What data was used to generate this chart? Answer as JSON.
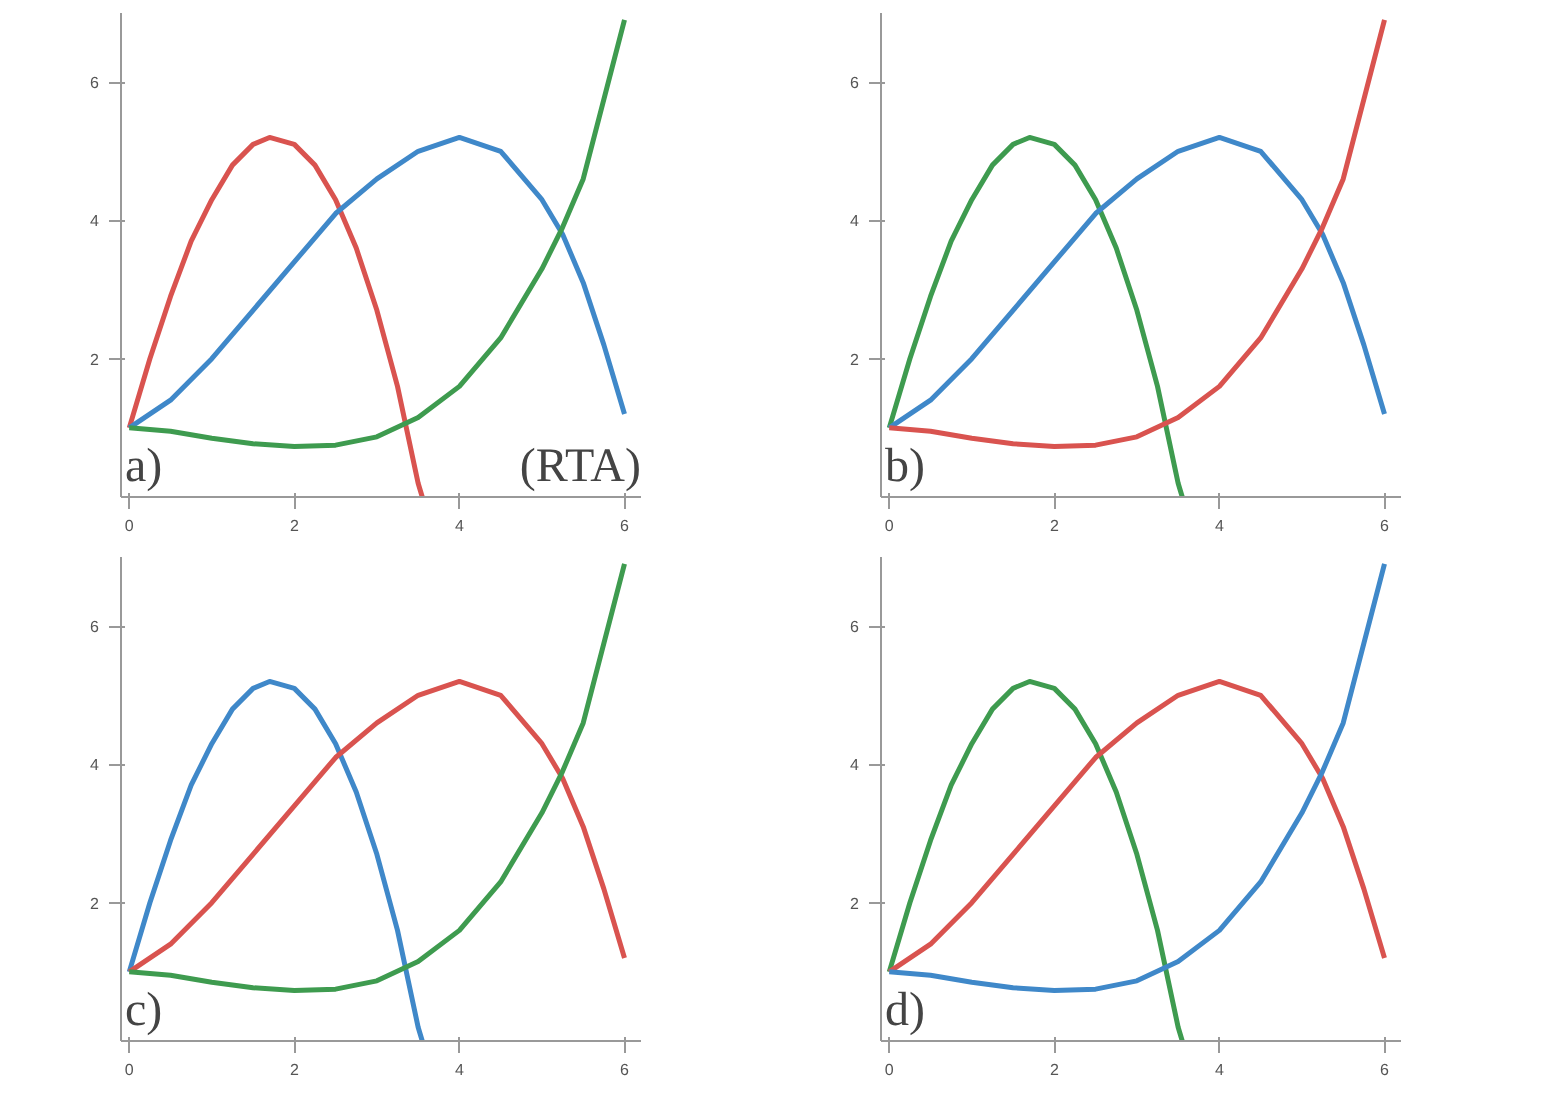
{
  "chart_data": [
    {
      "type": "line",
      "annotations": [
        "a)",
        "(RTA)"
      ],
      "xlim": [
        -0.1,
        6.2
      ],
      "ylim": [
        0,
        7
      ],
      "xticks": [
        0,
        2,
        4,
        6
      ],
      "yticks": [
        2,
        4,
        6
      ],
      "grid": false,
      "series": [
        {
          "color": "#d9534f",
          "x": [
            0,
            0.25,
            0.5,
            0.75,
            1,
            1.25,
            1.5,
            1.7,
            2,
            2.25,
            2.5,
            2.75,
            3,
            3.25,
            3.5,
            3.55
          ],
          "values": [
            1,
            2.0,
            2.9,
            3.7,
            4.3,
            4.8,
            5.1,
            5.2,
            5.1,
            4.8,
            4.3,
            3.6,
            2.7,
            1.6,
            0.2,
            0
          ]
        },
        {
          "color": "#3f88c9",
          "x": [
            0,
            0.5,
            1,
            1.5,
            2,
            2.5,
            3,
            3.5,
            4,
            4.5,
            5,
            5.25,
            5.5,
            5.75,
            6
          ],
          "values": [
            1,
            1.4,
            2.0,
            2.7,
            3.4,
            4.1,
            4.6,
            5.0,
            5.2,
            5.0,
            4.3,
            3.8,
            3.1,
            2.2,
            1.2
          ]
        },
        {
          "color": "#3e9b4f",
          "x": [
            0,
            0.5,
            1,
            1.5,
            2,
            2.5,
            3,
            3.5,
            4,
            4.5,
            5,
            5.25,
            5.5,
            6
          ],
          "values": [
            1,
            0.95,
            0.85,
            0.77,
            0.73,
            0.75,
            0.87,
            1.15,
            1.6,
            2.3,
            3.3,
            3.9,
            4.6,
            6.9
          ]
        }
      ]
    },
    {
      "type": "line",
      "annotations": [
        "b)"
      ],
      "xlim": [
        -0.1,
        6.2
      ],
      "ylim": [
        0,
        7
      ],
      "xticks": [
        0,
        2,
        4,
        6
      ],
      "yticks": [
        2,
        4,
        6
      ],
      "grid": false,
      "series": [
        {
          "color": "#3e9b4f",
          "x": [
            0,
            0.25,
            0.5,
            0.75,
            1,
            1.25,
            1.5,
            1.7,
            2,
            2.25,
            2.5,
            2.75,
            3,
            3.25,
            3.5,
            3.55
          ],
          "values": [
            1,
            2.0,
            2.9,
            3.7,
            4.3,
            4.8,
            5.1,
            5.2,
            5.1,
            4.8,
            4.3,
            3.6,
            2.7,
            1.6,
            0.2,
            0
          ]
        },
        {
          "color": "#3f88c9",
          "x": [
            0,
            0.5,
            1,
            1.5,
            2,
            2.5,
            3,
            3.5,
            4,
            4.5,
            5,
            5.25,
            5.5,
            5.75,
            6
          ],
          "values": [
            1,
            1.4,
            2.0,
            2.7,
            3.4,
            4.1,
            4.6,
            5.0,
            5.2,
            5.0,
            4.3,
            3.8,
            3.1,
            2.2,
            1.2
          ]
        },
        {
          "color": "#d9534f",
          "x": [
            0,
            0.5,
            1,
            1.5,
            2,
            2.5,
            3,
            3.5,
            4,
            4.5,
            5,
            5.25,
            5.5,
            6
          ],
          "values": [
            1,
            0.95,
            0.85,
            0.77,
            0.73,
            0.75,
            0.87,
            1.15,
            1.6,
            2.3,
            3.3,
            3.9,
            4.6,
            6.9
          ]
        }
      ]
    },
    {
      "type": "line",
      "annotations": [
        "c)"
      ],
      "xlim": [
        -0.1,
        6.2
      ],
      "ylim": [
        0,
        7
      ],
      "xticks": [
        0,
        2,
        4,
        6
      ],
      "yticks": [
        2,
        4,
        6
      ],
      "grid": false,
      "series": [
        {
          "color": "#3f88c9",
          "x": [
            0,
            0.25,
            0.5,
            0.75,
            1,
            1.25,
            1.5,
            1.7,
            2,
            2.25,
            2.5,
            2.75,
            3,
            3.25,
            3.5,
            3.55
          ],
          "values": [
            1,
            2.0,
            2.9,
            3.7,
            4.3,
            4.8,
            5.1,
            5.2,
            5.1,
            4.8,
            4.3,
            3.6,
            2.7,
            1.6,
            0.2,
            0
          ]
        },
        {
          "color": "#d9534f",
          "x": [
            0,
            0.5,
            1,
            1.5,
            2,
            2.5,
            3,
            3.5,
            4,
            4.5,
            5,
            5.25,
            5.5,
            5.75,
            6
          ],
          "values": [
            1,
            1.4,
            2.0,
            2.7,
            3.4,
            4.1,
            4.6,
            5.0,
            5.2,
            5.0,
            4.3,
            3.8,
            3.1,
            2.2,
            1.2
          ]
        },
        {
          "color": "#3e9b4f",
          "x": [
            0,
            0.5,
            1,
            1.5,
            2,
            2.5,
            3,
            3.5,
            4,
            4.5,
            5,
            5.25,
            5.5,
            6
          ],
          "values": [
            1,
            0.95,
            0.85,
            0.77,
            0.73,
            0.75,
            0.87,
            1.15,
            1.6,
            2.3,
            3.3,
            3.9,
            4.6,
            6.9
          ]
        }
      ]
    },
    {
      "type": "line",
      "annotations": [
        "d)"
      ],
      "xlim": [
        -0.1,
        6.2
      ],
      "ylim": [
        0,
        7
      ],
      "xticks": [
        0,
        2,
        4,
        6
      ],
      "yticks": [
        2,
        4,
        6
      ],
      "grid": false,
      "series": [
        {
          "color": "#3e9b4f",
          "x": [
            0,
            0.25,
            0.5,
            0.75,
            1,
            1.25,
            1.5,
            1.7,
            2,
            2.25,
            2.5,
            2.75,
            3,
            3.25,
            3.5,
            3.55
          ],
          "values": [
            1,
            2.0,
            2.9,
            3.7,
            4.3,
            4.8,
            5.1,
            5.2,
            5.1,
            4.8,
            4.3,
            3.6,
            2.7,
            1.6,
            0.2,
            0
          ]
        },
        {
          "color": "#d9534f",
          "x": [
            0,
            0.5,
            1,
            1.5,
            2,
            2.5,
            3,
            3.5,
            4,
            4.5,
            5,
            5.25,
            5.5,
            5.75,
            6
          ],
          "values": [
            1,
            1.4,
            2.0,
            2.7,
            3.4,
            4.1,
            4.6,
            5.0,
            5.2,
            5.0,
            4.3,
            3.8,
            3.1,
            2.2,
            1.2
          ]
        },
        {
          "color": "#3f88c9",
          "x": [
            0,
            0.5,
            1,
            1.5,
            2,
            2.5,
            3,
            3.5,
            4,
            4.5,
            5,
            5.25,
            5.5,
            6
          ],
          "values": [
            1,
            0.95,
            0.85,
            0.77,
            0.73,
            0.75,
            0.87,
            1.15,
            1.6,
            2.3,
            3.3,
            3.9,
            4.6,
            6.9
          ]
        }
      ]
    }
  ]
}
